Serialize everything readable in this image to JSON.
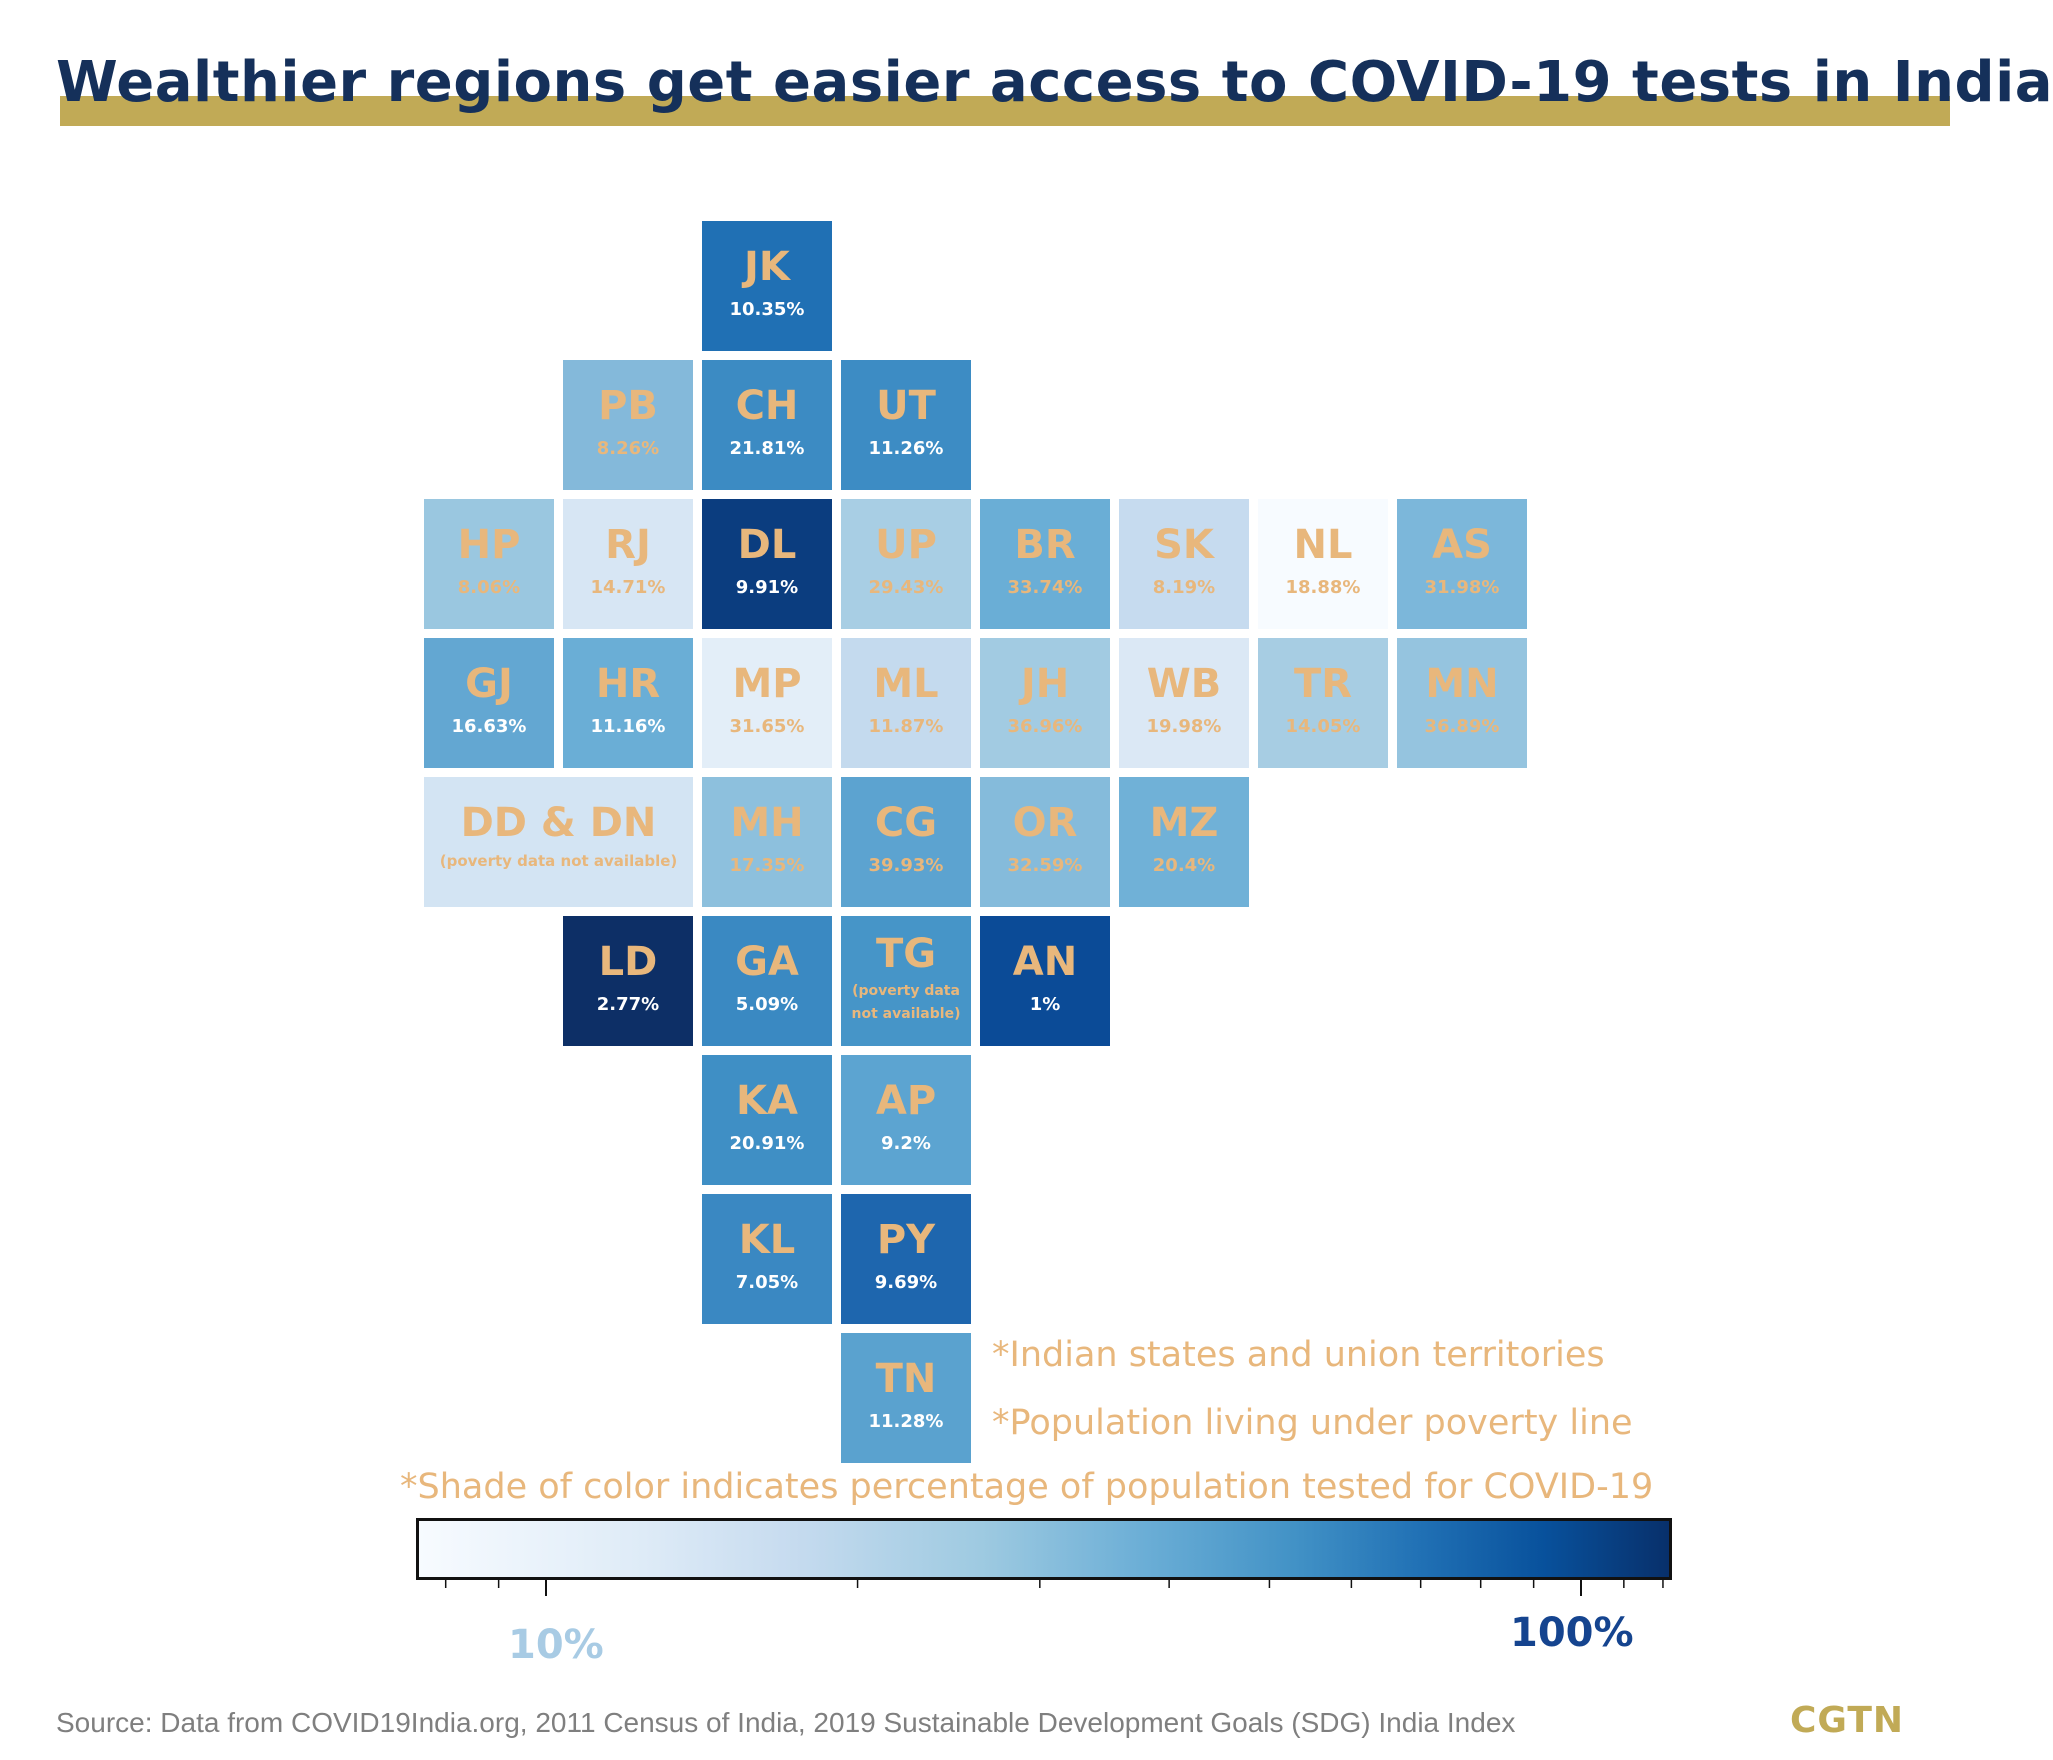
{
  "title": "Wealthier regions get easier access to COVID-19 tests in India",
  "colors": {
    "accent": "#c1aa56",
    "title": "#15305a",
    "label": "#e8b77c",
    "label_light": "#ffffff"
  },
  "notes": {
    "states": "*Indian states and union territories",
    "poverty": "*Population living under poverty line",
    "shade": "*Shade of color indicates percentage of population tested for COVID-19"
  },
  "colorbar": {
    "min_label": "10%",
    "max_label": "100%"
  },
  "source": "Source: Data from COVID19India.org, 2011 Census of India, 2019 Sustainable Development Goals (SDG) India Index",
  "logo": "CGTN",
  "chart_data": {
    "type": "heatmap",
    "title": "Wealthier regions get easier access to COVID-19 tests in India",
    "value_label": "*Population living under poverty line",
    "color_label": "*Shade of color indicates percentage of population tested for COVID-19",
    "tiles": [
      {
        "abbr": "JK",
        "value": "10.35%",
        "color": "#2070b4"
      },
      {
        "abbr": "PB",
        "value": "8.26%",
        "color": "#84b9da"
      },
      {
        "abbr": "CH",
        "value": "21.81%",
        "color": "#3c8bc3"
      },
      {
        "abbr": "UT",
        "value": "11.26%",
        "color": "#3d8cc4"
      },
      {
        "abbr": "HP",
        "value": "8.06%",
        "color": "#9ac7e0"
      },
      {
        "abbr": "RJ",
        "value": "14.71%",
        "color": "#d7e6f4"
      },
      {
        "abbr": "DL",
        "value": "9.91%",
        "color": "#0b3d7f"
      },
      {
        "abbr": "UP",
        "value": "29.43%",
        "color": "#a8cee4"
      },
      {
        "abbr": "BR",
        "value": "33.74%",
        "color": "#6aaed6"
      },
      {
        "abbr": "SK",
        "value": "8.19%",
        "color": "#c6dbef"
      },
      {
        "abbr": "NL",
        "value": "18.88%",
        "color": "#f7fbff"
      },
      {
        "abbr": "AS",
        "value": "31.98%",
        "color": "#7cb7da"
      },
      {
        "abbr": "GJ",
        "value": "16.63%",
        "color": "#63a7d2"
      },
      {
        "abbr": "HR",
        "value": "11.16%",
        "color": "#6aaed6"
      },
      {
        "abbr": "MP",
        "value": "31.65%",
        "color": "#e3eef8"
      },
      {
        "abbr": "ML",
        "value": "11.87%",
        "color": "#c4daee"
      },
      {
        "abbr": "JH",
        "value": "36.96%",
        "color": "#a2cbe2"
      },
      {
        "abbr": "WB",
        "value": "19.98%",
        "color": "#dbe8f5"
      },
      {
        "abbr": "TR",
        "value": "14.05%",
        "color": "#a7cde3"
      },
      {
        "abbr": "MN",
        "value": "36.89%",
        "color": "#95c4df"
      },
      {
        "abbr": "DD & DN",
        "value": "(poverty data not available)",
        "color": "#d3e4f3"
      },
      {
        "abbr": "MH",
        "value": "17.35%",
        "color": "#8dc0dd"
      },
      {
        "abbr": "CG",
        "value": "39.93%",
        "color": "#5ca3d0"
      },
      {
        "abbr": "OR",
        "value": "32.59%",
        "color": "#85bbdb"
      },
      {
        "abbr": "MZ",
        "value": "20.4%",
        "color": "#70b1d7"
      },
      {
        "abbr": "LD",
        "value": "2.77%",
        "color": "#0d2f66"
      },
      {
        "abbr": "GA",
        "value": "5.09%",
        "color": "#3a89c2"
      },
      {
        "abbr": "TG",
        "value": "(poverty data not available)",
        "color": "#4695c8"
      },
      {
        "abbr": "AN",
        "value": "1%",
        "color": "#0b4b97"
      },
      {
        "abbr": "KA",
        "value": "20.91%",
        "color": "#3f8fc5"
      },
      {
        "abbr": "AP",
        "value": "9.2%",
        "color": "#5ca4d1"
      },
      {
        "abbr": "KL",
        "value": "7.05%",
        "color": "#3a88c2"
      },
      {
        "abbr": "PY",
        "value": "9.69%",
        "color": "#1e66ae"
      },
      {
        "abbr": "TN",
        "value": "11.28%",
        "color": "#5aa2cf"
      }
    ]
  }
}
